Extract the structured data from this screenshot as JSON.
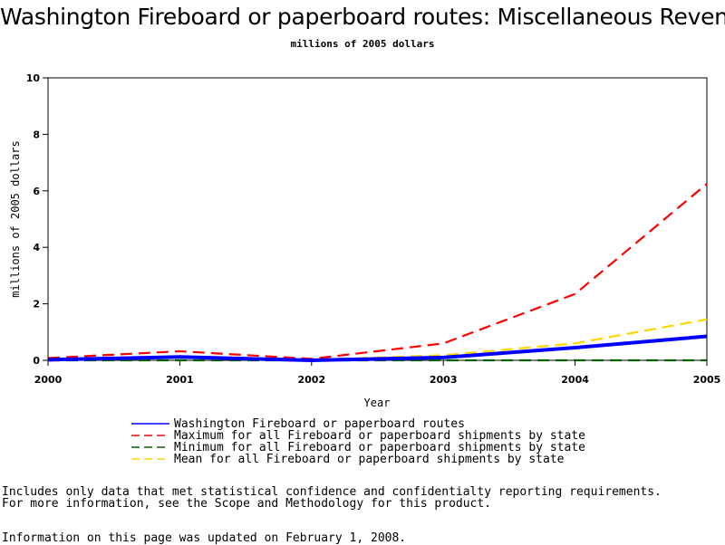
{
  "chart_data": {
    "type": "line",
    "title": "Washington Fireboard or paperboard routes: Miscellaneous Revenue",
    "subtitle": "millions of 2005 dollars",
    "xlabel": "Year",
    "ylabel": "millions of 2005 dollars",
    "x": [
      2000,
      2001,
      2002,
      2003,
      2004,
      2005
    ],
    "xlim": [
      2000,
      2005
    ],
    "ylim": [
      0,
      10
    ],
    "yticks": [
      0,
      2,
      4,
      6,
      8,
      10
    ],
    "xticks": [
      "2000",
      "2001",
      "2002",
      "2003",
      "2004",
      "2005"
    ],
    "grid": false,
    "legend_position": "bottom",
    "series": [
      {
        "name": "Washington Fireboard or paperboard routes",
        "values": [
          0.02,
          0.12,
          0.0,
          0.1,
          0.45,
          0.85
        ],
        "color": "#0000ff",
        "style": "solid"
      },
      {
        "name": "Maximum for all Fireboard or paperboard shipments by state",
        "values": [
          0.08,
          0.32,
          0.05,
          0.6,
          2.35,
          6.25
        ],
        "color": "#ff0000",
        "style": "dashed"
      },
      {
        "name": "Minimum for all Fireboard or paperboard shipments by state",
        "values": [
          0.0,
          0.0,
          0.0,
          0.0,
          0.0,
          0.0
        ],
        "color": "#006400",
        "style": "dashed"
      },
      {
        "name": "Mean for all Fireboard or paperboard shipments by state",
        "values": [
          0.03,
          0.1,
          0.02,
          0.18,
          0.6,
          1.45
        ],
        "color": "#ffd700",
        "style": "dashed"
      }
    ]
  },
  "notes": {
    "line1": "Includes only data that met statistical confidence and confidentialty reporting requirements.",
    "line2": "For more information, see the Scope and Methodology for this product.",
    "line3": "Information on this page was updated on February 1, 2008."
  }
}
